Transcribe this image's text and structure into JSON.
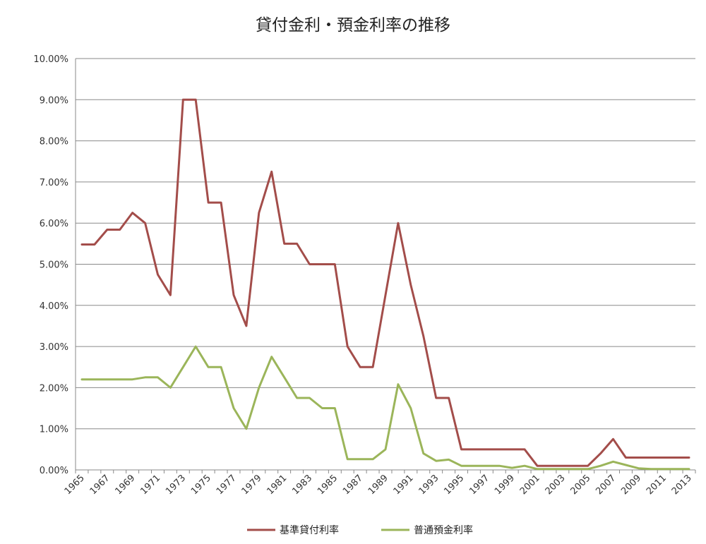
{
  "chart_data": {
    "type": "line",
    "title": "貸付金利・預金利率の推移",
    "xlabel": "",
    "ylabel": "",
    "ylim": [
      0,
      0.1
    ],
    "y_ticks": [
      "0.00%",
      "1.00%",
      "2.00%",
      "3.00%",
      "4.00%",
      "5.00%",
      "6.00%",
      "7.00%",
      "8.00%",
      "9.00%",
      "10.00%"
    ],
    "x_tick_labels": [
      "1965",
      "1967",
      "1969",
      "1971",
      "1973",
      "1975",
      "1977",
      "1979",
      "1981",
      "1983",
      "1985",
      "1987",
      "1989",
      "1991",
      "1993",
      "1995",
      "1997",
      "1999",
      "2001",
      "2003",
      "2005",
      "2007",
      "2009",
      "2011",
      "2013"
    ],
    "grid": "horizontal",
    "legend_position": "bottom",
    "x": [
      1965,
      1966,
      1967,
      1968,
      1969,
      1970,
      1971,
      1972,
      1973,
      1974,
      1975,
      1976,
      1977,
      1978,
      1979,
      1980,
      1981,
      1982,
      1983,
      1984,
      1985,
      1986,
      1987,
      1988,
      1989,
      1990,
      1991,
      1992,
      1993,
      1994,
      1995,
      1996,
      1997,
      1998,
      1999,
      2000,
      2001,
      2002,
      2003,
      2004,
      2005,
      2006,
      2007,
      2008,
      2009,
      2010,
      2011,
      2012,
      2013
    ],
    "series": [
      {
        "name": "基準貸付利率",
        "color": "#a34d4a",
        "values": [
          0.0548,
          0.0548,
          0.0584,
          0.0584,
          0.0625,
          0.06,
          0.0475,
          0.0425,
          0.09,
          0.09,
          0.065,
          0.065,
          0.0425,
          0.035,
          0.0625,
          0.0725,
          0.055,
          0.055,
          0.05,
          0.05,
          0.05,
          0.03,
          0.025,
          0.025,
          0.0425,
          0.06,
          0.045,
          0.0325,
          0.0175,
          0.0175,
          0.005,
          0.005,
          0.005,
          0.005,
          0.005,
          0.005,
          0.001,
          0.001,
          0.001,
          0.001,
          0.001,
          0.004,
          0.0075,
          0.003,
          0.003,
          0.003,
          0.003,
          0.003,
          0.003
        ]
      },
      {
        "name": "普通預金利率",
        "color": "#9bb55a",
        "values": [
          0.022,
          0.022,
          0.022,
          0.022,
          0.022,
          0.0225,
          0.0225,
          0.02,
          0.025,
          0.03,
          0.025,
          0.025,
          0.015,
          0.01,
          0.02,
          0.0275,
          0.0225,
          0.0175,
          0.0175,
          0.015,
          0.015,
          0.0026,
          0.0026,
          0.0026,
          0.005,
          0.0208,
          0.015,
          0.004,
          0.0022,
          0.0025,
          0.001,
          0.001,
          0.001,
          0.001,
          0.0005,
          0.001,
          0.0002,
          0.0002,
          0.0002,
          0.0002,
          0.0002,
          0.001,
          0.002,
          0.0012,
          0.0004,
          0.0002,
          0.0002,
          0.0002,
          0.0002
        ]
      }
    ]
  }
}
